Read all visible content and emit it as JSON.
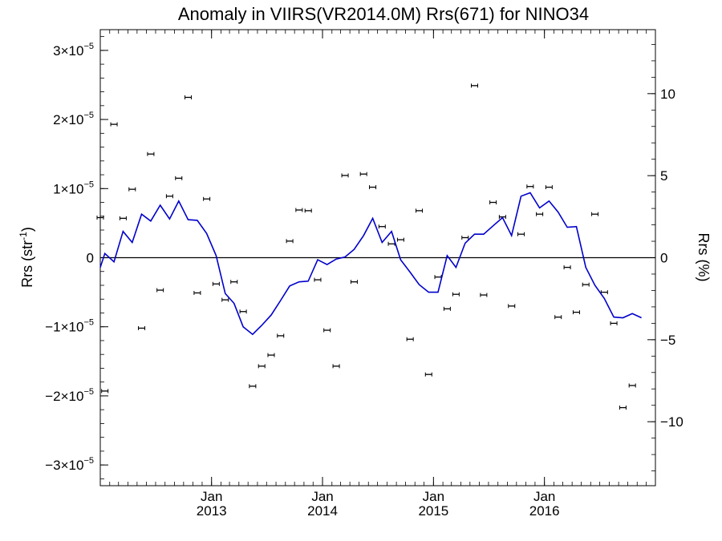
{
  "chart_data": {
    "type": "line",
    "title": "Anomaly in VIIRS(VR2014.0M) Rrs(671) for NINO34",
    "ylabel_left": {
      "base": "Rrs (str",
      "sup": "-1",
      "close": ")"
    },
    "ylabel_right": "Rrs (%)",
    "y_left": {
      "min": -3.3e-05,
      "max": 3.3e-05,
      "ticks": [
        {
          "value": 3e-05,
          "mant": "3×10",
          "exp": "−5"
        },
        {
          "value": 2e-05,
          "mant": "2×10",
          "exp": "−5"
        },
        {
          "value": 1e-05,
          "mant": "1×10",
          "exp": "−5"
        },
        {
          "value": 0,
          "mant": "0",
          "exp": ""
        },
        {
          "value": -1e-05,
          "mant": "−1×10",
          "exp": "−5"
        },
        {
          "value": -2e-05,
          "mant": "−2×10",
          "exp": "−5"
        },
        {
          "value": -3e-05,
          "mant": "−3×10",
          "exp": "−5"
        }
      ]
    },
    "y_right": {
      "min": -13.9,
      "max": 13.9,
      "ticks": [
        {
          "value": 10,
          "label": "10"
        },
        {
          "value": 5,
          "label": "5"
        },
        {
          "value": 0,
          "label": "0"
        },
        {
          "value": -5,
          "label": "−5"
        },
        {
          "value": -10,
          "label": "−10"
        }
      ]
    },
    "x_axis": {
      "start": "2012-01-01",
      "end": "2016-12-31",
      "major_ticks": [
        {
          "date": "2013-01-01",
          "month": "Jan",
          "year": "2013"
        },
        {
          "date": "2014-01-01",
          "month": "Jan",
          "year": "2014"
        },
        {
          "date": "2015-01-01",
          "month": "Jan",
          "year": "2015"
        },
        {
          "date": "2016-01-01",
          "month": "Jan",
          "year": "2016"
        }
      ]
    },
    "zero_line": 0,
    "series": [
      {
        "kind": "smoothed-line",
        "color": "#0000cc",
        "points": [
          [
            "2012-01-01",
            -1.4e-06
          ],
          [
            "2012-01-16",
            6e-07
          ],
          [
            "2012-02-15",
            -6e-07
          ],
          [
            "2012-03-16",
            3.8e-06
          ],
          [
            "2012-04-15",
            2.2e-06
          ],
          [
            "2012-05-16",
            6.3e-06
          ],
          [
            "2012-06-15",
            5.3e-06
          ],
          [
            "2012-07-16",
            7.6e-06
          ],
          [
            "2012-08-16",
            5.6e-06
          ],
          [
            "2012-09-15",
            8.2e-06
          ],
          [
            "2012-10-16",
            5.5e-06
          ],
          [
            "2012-11-15",
            5.4e-06
          ],
          [
            "2012-12-16",
            3.5e-06
          ],
          [
            "2013-01-16",
            3e-07
          ],
          [
            "2013-02-15",
            -5.2e-06
          ],
          [
            "2013-03-16",
            -6.6e-06
          ],
          [
            "2013-04-15",
            -1e-05
          ],
          [
            "2013-05-16",
            -1.11e-05
          ],
          [
            "2013-06-15",
            -9.8e-06
          ],
          [
            "2013-07-16",
            -8.3e-06
          ],
          [
            "2013-08-16",
            -6.2e-06
          ],
          [
            "2013-09-15",
            -4.1e-06
          ],
          [
            "2013-10-16",
            -3.5e-06
          ],
          [
            "2013-11-15",
            -3.4e-06
          ],
          [
            "2013-12-16",
            -3e-07
          ],
          [
            "2014-01-16",
            -1e-06
          ],
          [
            "2014-02-15",
            -2e-07
          ],
          [
            "2014-03-16",
            1e-07
          ],
          [
            "2014-04-15",
            1.2e-06
          ],
          [
            "2014-05-16",
            3.2e-06
          ],
          [
            "2014-06-15",
            5.7e-06
          ],
          [
            "2014-07-16",
            2.2e-06
          ],
          [
            "2014-08-16",
            3.8e-06
          ],
          [
            "2014-09-15",
            -3e-07
          ],
          [
            "2014-10-16",
            -2.1e-06
          ],
          [
            "2014-11-15",
            -3.9e-06
          ],
          [
            "2014-12-16",
            -5e-06
          ],
          [
            "2015-01-16",
            -5e-06
          ],
          [
            "2015-02-15",
            3e-07
          ],
          [
            "2015-03-16",
            -1.4e-06
          ],
          [
            "2015-04-15",
            2.1e-06
          ],
          [
            "2015-05-16",
            3.4e-06
          ],
          [
            "2015-06-15",
            3.4e-06
          ],
          [
            "2015-07-16",
            4.6e-06
          ],
          [
            "2015-08-16",
            5.8e-06
          ],
          [
            "2015-09-15",
            3.2e-06
          ],
          [
            "2015-10-16",
            8.9e-06
          ],
          [
            "2015-11-15",
            9.4e-06
          ],
          [
            "2015-12-16",
            7.2e-06
          ],
          [
            "2016-01-16",
            8.2e-06
          ],
          [
            "2016-02-15",
            6.6e-06
          ],
          [
            "2016-03-16",
            4.4e-06
          ],
          [
            "2016-04-15",
            4.5e-06
          ],
          [
            "2016-05-16",
            -1.4e-06
          ],
          [
            "2016-06-15",
            -4e-06
          ],
          [
            "2016-07-16",
            -5.9e-06
          ],
          [
            "2016-08-16",
            -8.6e-06
          ],
          [
            "2016-09-15",
            -8.7e-06
          ],
          [
            "2016-10-16",
            -8.1e-06
          ],
          [
            "2016-11-15",
            -8.7e-06
          ]
        ]
      },
      {
        "kind": "monthly-anomaly-with-error-bars",
        "color": "#000000",
        "points": [
          [
            "2012-01-01",
            5.8e-06
          ],
          [
            "2012-01-16",
            -1.93e-05
          ],
          [
            "2012-02-15",
            1.93e-05
          ],
          [
            "2012-03-16",
            5.7e-06
          ],
          [
            "2012-04-15",
            9.9e-06
          ],
          [
            "2012-05-16",
            -1.02e-05
          ],
          [
            "2012-06-15",
            1.5e-05
          ],
          [
            "2012-07-16",
            -4.7e-06
          ],
          [
            "2012-08-16",
            8.9e-06
          ],
          [
            "2012-09-15",
            1.15e-05
          ],
          [
            "2012-10-16",
            2.32e-05
          ],
          [
            "2012-11-15",
            -5.1e-06
          ],
          [
            "2012-12-16",
            8.5e-06
          ],
          [
            "2013-01-16",
            -3.8e-06
          ],
          [
            "2013-02-15",
            -6.1e-06
          ],
          [
            "2013-03-16",
            -3.5e-06
          ],
          [
            "2013-04-15",
            -7.8e-06
          ],
          [
            "2013-05-16",
            -1.86e-05
          ],
          [
            "2013-06-15",
            -1.57e-05
          ],
          [
            "2013-07-16",
            -1.41e-05
          ],
          [
            "2013-08-16",
            -1.13e-05
          ],
          [
            "2013-09-15",
            2.4e-06
          ],
          [
            "2013-10-16",
            6.9e-06
          ],
          [
            "2013-11-15",
            6.8e-06
          ],
          [
            "2013-12-16",
            -3.2e-06
          ],
          [
            "2014-01-16",
            -1.05e-05
          ],
          [
            "2014-02-15",
            -1.57e-05
          ],
          [
            "2014-03-16",
            1.19e-05
          ],
          [
            "2014-04-15",
            -3.5e-06
          ],
          [
            "2014-05-16",
            1.21e-05
          ],
          [
            "2014-06-15",
            1.02e-05
          ],
          [
            "2014-07-16",
            4.5e-06
          ],
          [
            "2014-08-16",
            2e-06
          ],
          [
            "2014-09-15",
            2.6e-06
          ],
          [
            "2014-10-16",
            -1.18e-05
          ],
          [
            "2014-11-15",
            6.8e-06
          ],
          [
            "2014-12-16",
            -1.69e-05
          ],
          [
            "2015-01-16",
            -2.8e-06
          ],
          [
            "2015-02-15",
            -7.4e-06
          ],
          [
            "2015-03-16",
            -5.3e-06
          ],
          [
            "2015-04-15",
            2.9e-06
          ],
          [
            "2015-05-16",
            2.49e-05
          ],
          [
            "2015-06-15",
            -5.4e-06
          ],
          [
            "2015-07-16",
            8e-06
          ],
          [
            "2015-08-16",
            5.9e-06
          ],
          [
            "2015-09-15",
            -7e-06
          ],
          [
            "2015-10-16",
            3.4e-06
          ],
          [
            "2015-11-15",
            1.03e-05
          ],
          [
            "2015-12-16",
            6.3e-06
          ],
          [
            "2016-01-16",
            1.02e-05
          ],
          [
            "2016-02-15",
            -8.6e-06
          ],
          [
            "2016-03-16",
            -1.4e-06
          ],
          [
            "2016-04-15",
            -7.9e-06
          ],
          [
            "2016-05-16",
            -3.9e-06
          ],
          [
            "2016-06-15",
            6.3e-06
          ],
          [
            "2016-07-16",
            -5e-06
          ],
          [
            "2016-08-16",
            -9.5e-06
          ],
          [
            "2016-09-15",
            -2.17e-05
          ],
          [
            "2016-10-16",
            -1.85e-05
          ]
        ]
      }
    ]
  }
}
